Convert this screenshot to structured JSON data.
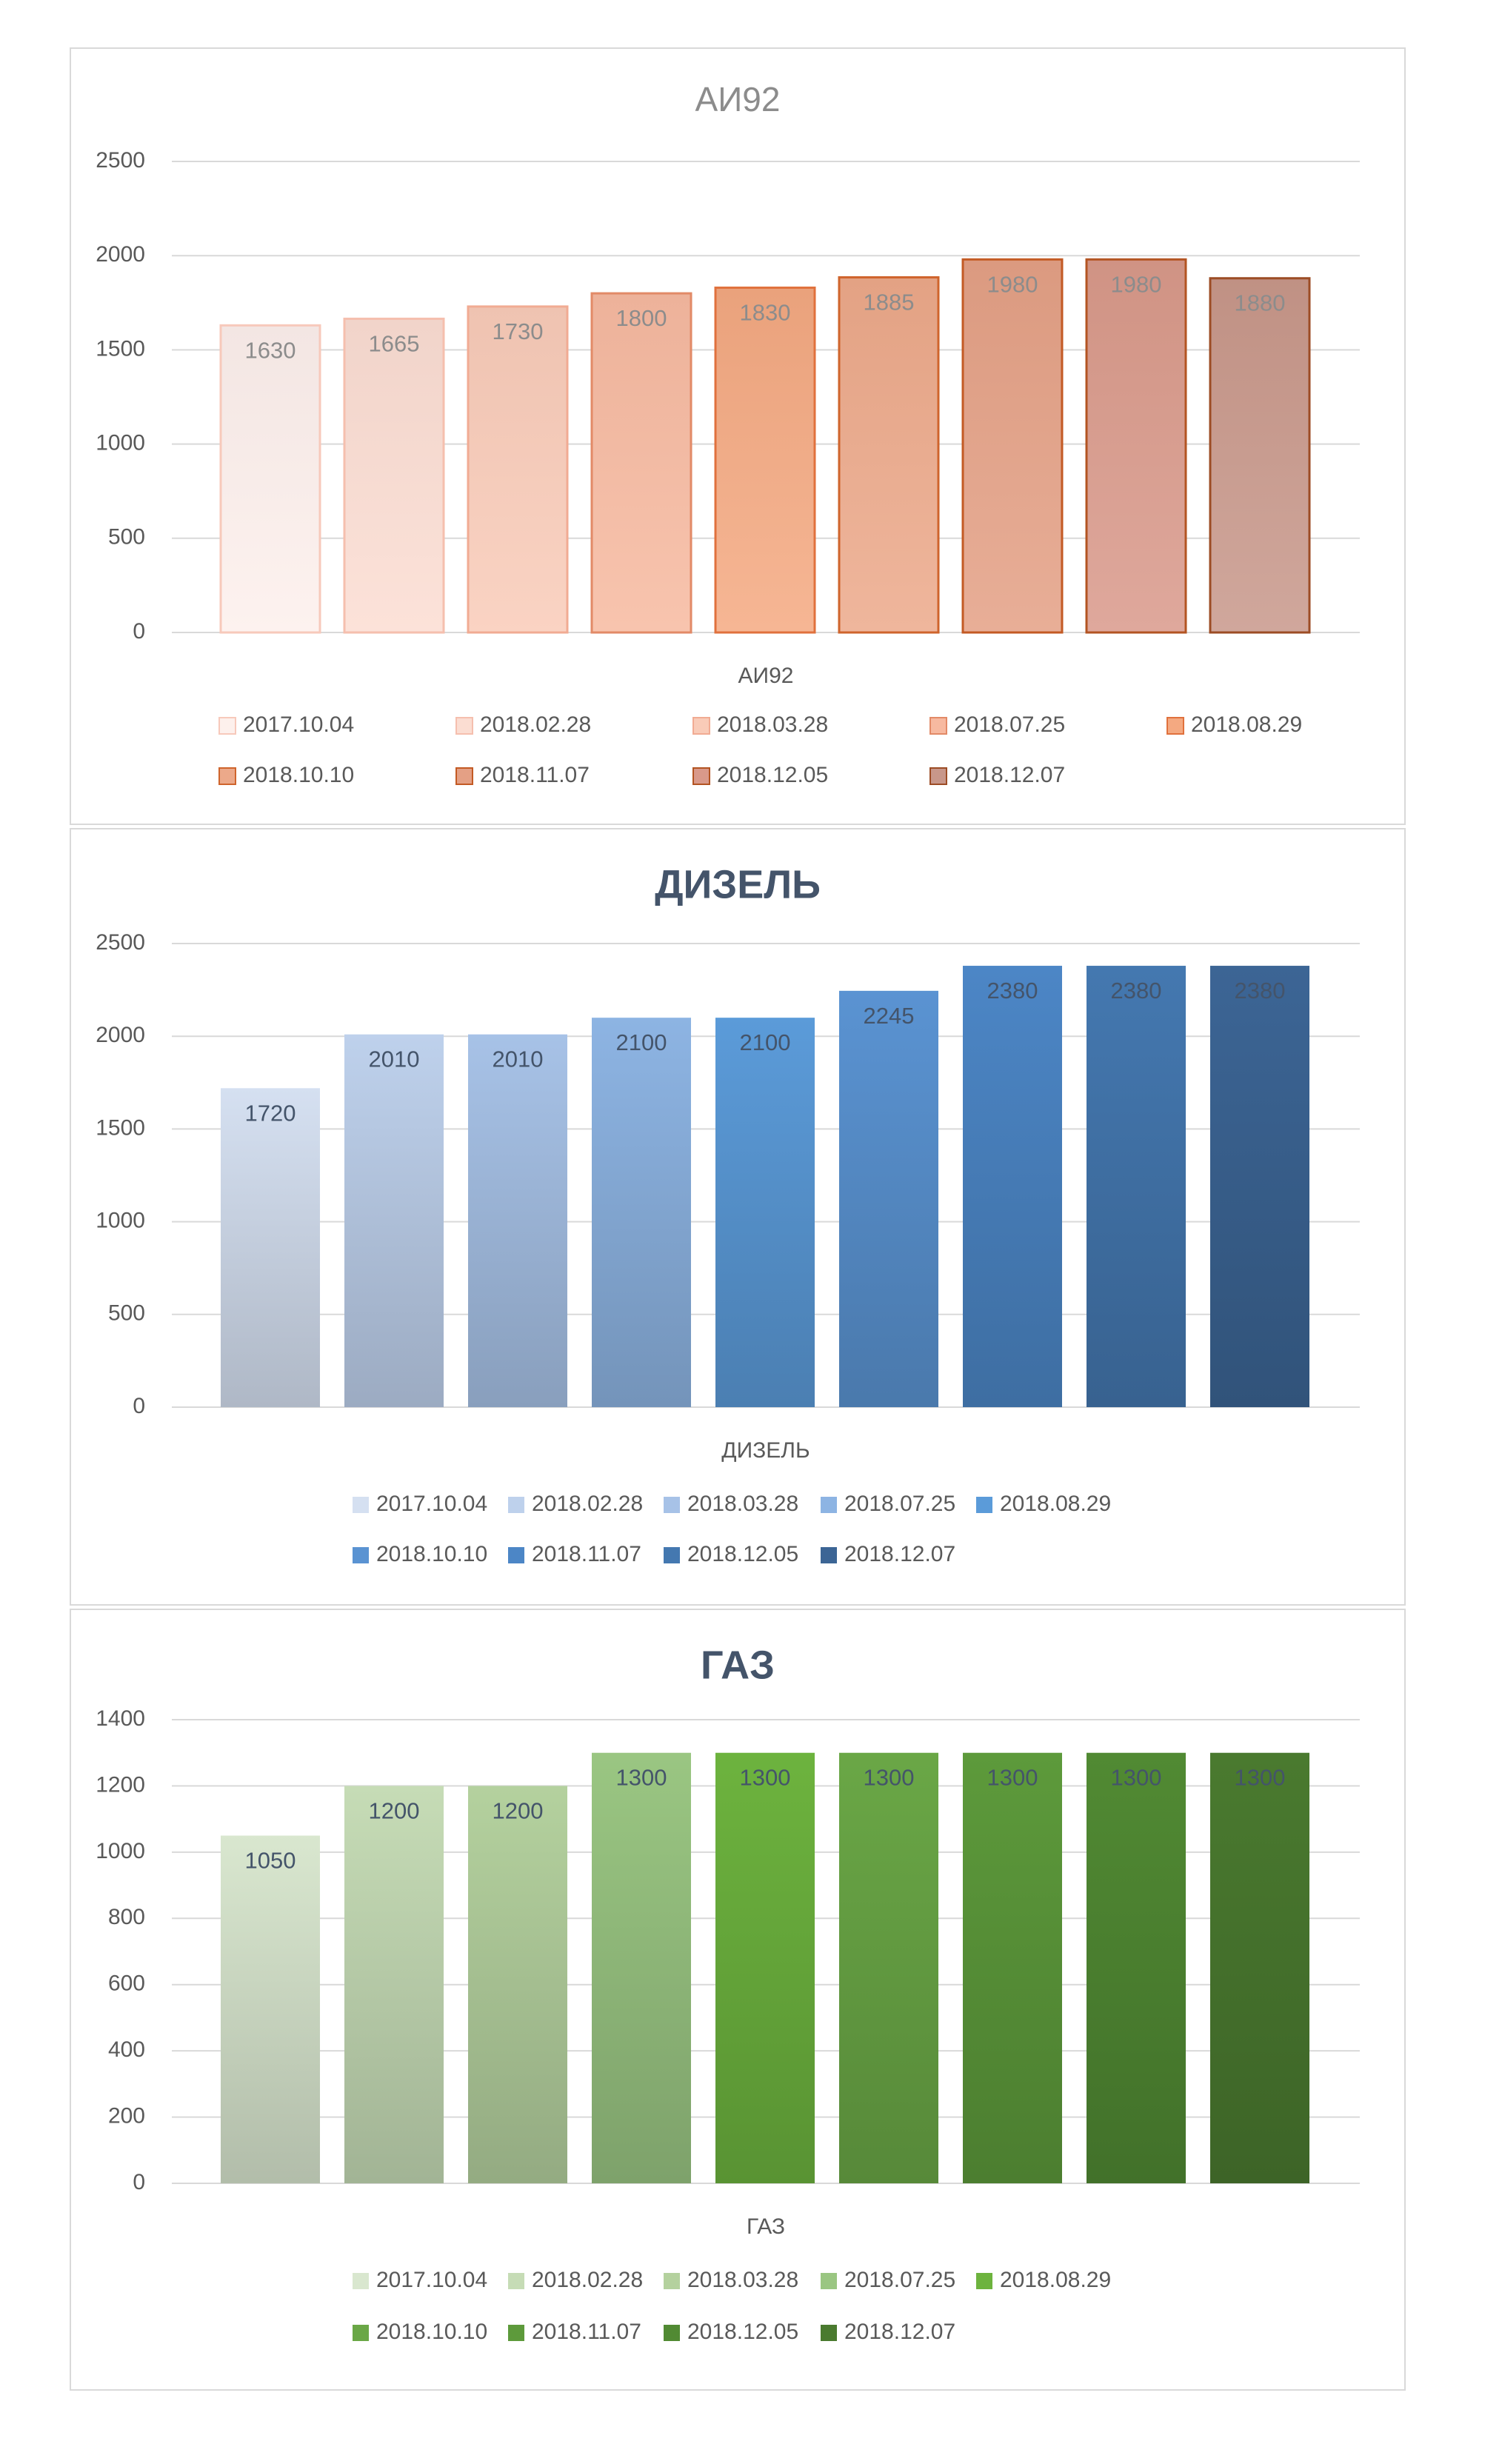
{
  "chart_data": [
    {
      "type": "bar",
      "title": "АИ92",
      "xlabel": "АИ92",
      "ylabel": "",
      "categories": [
        "АИ92"
      ],
      "ylim": [
        0,
        2500
      ],
      "yticks": [
        0,
        500,
        1000,
        1500,
        2000,
        2500
      ],
      "grid": true,
      "legend_position": "bottom",
      "series": [
        {
          "name": "2017.10.04",
          "values": [
            1630
          ],
          "color": "#fdf0ec",
          "stroke": "#f7c9bb"
        },
        {
          "name": "2018.02.28",
          "values": [
            1665
          ],
          "color": "#fbddd2",
          "stroke": "#f5bfae"
        },
        {
          "name": "2018.03.28",
          "values": [
            1730
          ],
          "color": "#f9cbb8",
          "stroke": "#f1ab93"
        },
        {
          "name": "2018.07.25",
          "values": [
            1800
          ],
          "color": "#f7b9a0",
          "stroke": "#e28a67"
        },
        {
          "name": "2018.08.29",
          "values": [
            1830
          ],
          "color": "#f4a981",
          "stroke": "#e0713d"
        },
        {
          "name": "2018.10.10",
          "values": [
            1885
          ],
          "color": "#eca98a",
          "stroke": "#cf642c"
        },
        {
          "name": "2018.11.07",
          "values": [
            1980
          ],
          "color": "#e4a085",
          "stroke": "#c35a24"
        },
        {
          "name": "2018.12.05",
          "values": [
            1980
          ],
          "color": "#d9998a",
          "stroke": "#b35422"
        },
        {
          "name": "2018.12.07",
          "values": [
            1880
          ],
          "color": "#c8978a",
          "stroke": "#9c4c25"
        }
      ]
    },
    {
      "type": "bar",
      "title": "ДИЗЕЛЬ",
      "xlabel": "ДИЗЕЛЬ",
      "ylabel": "",
      "categories": [
        "ДИЗЕЛЬ"
      ],
      "ylim": [
        0,
        2500
      ],
      "yticks": [
        0,
        500,
        1000,
        1500,
        2000,
        2500
      ],
      "grid": true,
      "legend_position": "bottom",
      "series": [
        {
          "name": "2017.10.04",
          "values": [
            1720
          ],
          "color": "#d5e0f1"
        },
        {
          "name": "2018.02.28",
          "values": [
            2010
          ],
          "color": "#bed1ec"
        },
        {
          "name": "2018.03.28",
          "values": [
            2010
          ],
          "color": "#a7c2e7"
        },
        {
          "name": "2018.07.25",
          "values": [
            2100
          ],
          "color": "#8db4e3"
        },
        {
          "name": "2018.08.29",
          "values": [
            2100
          ],
          "color": "#5b9bd9"
        },
        {
          "name": "2018.10.10",
          "values": [
            2245
          ],
          "color": "#5a93d2"
        },
        {
          "name": "2018.11.07",
          "values": [
            2380
          ],
          "color": "#4c86c6"
        },
        {
          "name": "2018.12.05",
          "values": [
            2380
          ],
          "color": "#4478b0"
        },
        {
          "name": "2018.12.07",
          "values": [
            2380
          ],
          "color": "#3c6595"
        }
      ]
    },
    {
      "type": "bar",
      "title": "ГАЗ",
      "xlabel": "ГАЗ",
      "ylabel": "",
      "categories": [
        "ГАЗ"
      ],
      "ylim": [
        0,
        1400
      ],
      "yticks": [
        0,
        200,
        400,
        600,
        800,
        1000,
        1200,
        1400
      ],
      "grid": true,
      "legend_position": "bottom",
      "series": [
        {
          "name": "2017.10.04",
          "values": [
            1050
          ],
          "color": "#d9e7cf"
        },
        {
          "name": "2018.02.28",
          "values": [
            1200
          ],
          "color": "#c6dcb6"
        },
        {
          "name": "2018.03.28",
          "values": [
            1200
          ],
          "color": "#b4d19e"
        },
        {
          "name": "2018.07.25",
          "values": [
            1300
          ],
          "color": "#9ac682"
        },
        {
          "name": "2018.08.29",
          "values": [
            1300
          ],
          "color": "#6db33e"
        },
        {
          "name": "2018.10.10",
          "values": [
            1300
          ],
          "color": "#6aa746"
        },
        {
          "name": "2018.11.07",
          "values": [
            1300
          ],
          "color": "#5d9a3b"
        },
        {
          "name": "2018.12.05",
          "values": [
            1300
          ],
          "color": "#518a33"
        },
        {
          "name": "2018.12.07",
          "values": [
            1300
          ],
          "color": "#4a7a2f"
        }
      ]
    }
  ]
}
